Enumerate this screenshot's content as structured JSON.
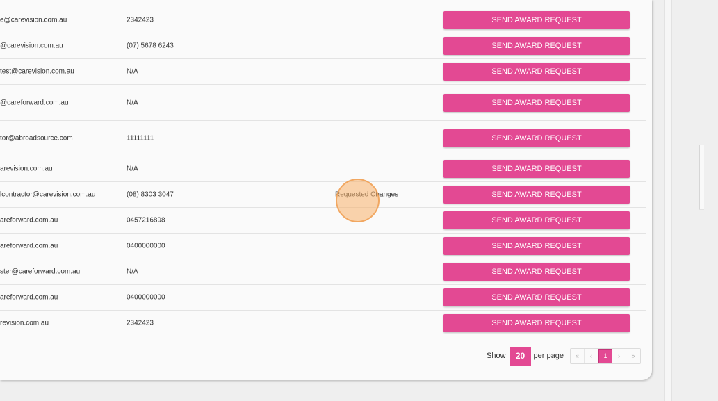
{
  "table": {
    "rows": [
      {
        "email": "e@carevision.com.au",
        "phone": "2342423",
        "status": "",
        "action": "SEND AWARD REQUEST"
      },
      {
        "email": "@carevision.com.au",
        "phone": "(07) 5678 6243",
        "status": "",
        "action": "SEND AWARD REQUEST"
      },
      {
        "email": "test@carevision.com.au",
        "phone": "N/A",
        "status": "",
        "action": "SEND AWARD REQUEST"
      },
      {
        "email": "@careforward.com.au",
        "phone": "N/A",
        "status": "",
        "action": "SEND AWARD REQUEST"
      },
      {
        "email": "tor@abroadsource.com",
        "phone": "11111111",
        "status": "",
        "action": "SEND AWARD REQUEST"
      },
      {
        "email": "arevision.com.au",
        "phone": "N/A",
        "status": "",
        "action": "SEND AWARD REQUEST"
      },
      {
        "email": "lcontractor@carevision.com.au",
        "phone": "(08) 8303 3047",
        "status": "Requested Changes",
        "action": "SEND AWARD REQUEST"
      },
      {
        "email": "areforward.com.au",
        "phone": "0457216898",
        "status": "",
        "action": "SEND AWARD REQUEST"
      },
      {
        "email": "areforward.com.au",
        "phone": "0400000000",
        "status": "",
        "action": "SEND AWARD REQUEST"
      },
      {
        "email": "ster@careforward.com.au",
        "phone": "N/A",
        "status": "",
        "action": "SEND AWARD REQUEST"
      },
      {
        "email": "areforward.com.au",
        "phone": "0400000000",
        "status": "",
        "action": "SEND AWARD REQUEST"
      },
      {
        "email": "revision.com.au",
        "phone": "2342423",
        "status": "",
        "action": "SEND AWARD REQUEST"
      }
    ]
  },
  "pagination": {
    "show_label": "Show",
    "per_page_value": "20",
    "per_page_label": "per page",
    "first": "«",
    "prev": "‹",
    "current": "1",
    "next": "›",
    "last": "»"
  },
  "colors": {
    "accent": "#e34993",
    "cursor_highlight": "#f7b16a"
  }
}
